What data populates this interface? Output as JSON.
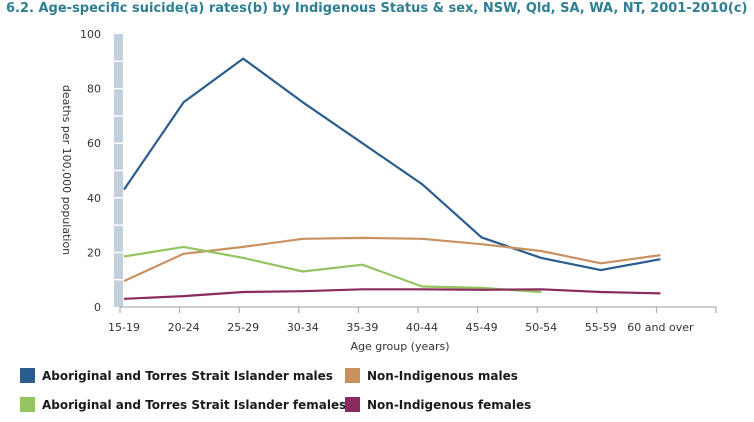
{
  "chart_data": {
    "type": "line",
    "title": "6.2. Age-specific suicide(a) rates(b) by Indigenous Status & sex, NSW, Qld, SA, WA, NT, 2001-2010(c)",
    "xlabel": "Age group (years)",
    "ylabel": "deaths per 100,000 population",
    "categories": [
      "15-19",
      "20-24",
      "25-29",
      "30-34",
      "35-39",
      "40-44",
      "45-49",
      "50-54",
      "55-59",
      "60 and over"
    ],
    "ylim": [
      0,
      100
    ],
    "yticks": [
      "0",
      "20",
      "40",
      "60",
      "80",
      "100"
    ],
    "grid": false,
    "legend_position": "bottom",
    "series": [
      {
        "name": "Aboriginal and Torres Strait Islander males",
        "color": "#2a5d8f",
        "values": [
          43,
          75,
          91,
          75,
          60,
          45,
          25.5,
          18,
          13.5,
          17.5
        ]
      },
      {
        "name": "Non-Indigenous males",
        "color": "#c9915f",
        "values": [
          9.5,
          19.5,
          22,
          25,
          25.3,
          25,
          23,
          20.5,
          16,
          19
        ]
      },
      {
        "name": "Aboriginal and Torres Strait Islander females",
        "color": "#93c461",
        "values": [
          18.5,
          22,
          18,
          13,
          15.5,
          7.5,
          7,
          5.5,
          null,
          null
        ]
      },
      {
        "name": "Non-Indigenous females",
        "color": "#8a2a5e",
        "values": [
          3,
          4,
          5.5,
          5.8,
          6.5,
          6.5,
          6.3,
          6.5,
          5.5,
          5
        ]
      }
    ]
  }
}
